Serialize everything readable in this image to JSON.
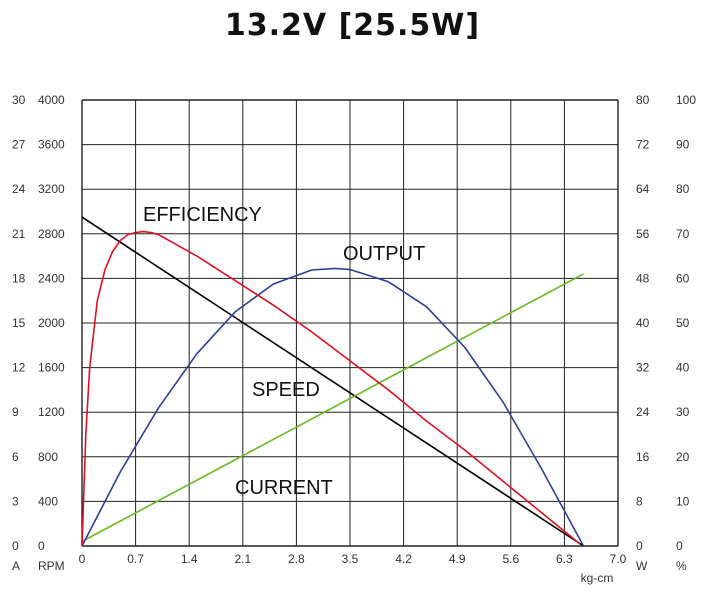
{
  "chart_data": {
    "type": "line",
    "title": "13.2V [25.5W]",
    "x_axis": {
      "ticks": [
        "0",
        "0.7",
        "1.4",
        "2.1",
        "2.8",
        "3.5",
        "4.2",
        "4.9",
        "5.6",
        "6.3",
        "7.0"
      ],
      "range": [
        0,
        7.0
      ],
      "unit_label": "kg-cm"
    },
    "left_axes": [
      {
        "unit_label": "A",
        "range": [
          0,
          30
        ],
        "ticks": [
          "0",
          "3",
          "6",
          "9",
          "12",
          "15",
          "18",
          "21",
          "24",
          "27",
          "30"
        ]
      },
      {
        "unit_label": "RPM",
        "range": [
          0,
          4000
        ],
        "ticks": [
          "0",
          "400",
          "800",
          "1200",
          "1600",
          "2000",
          "2400",
          "2800",
          "3200",
          "3600",
          "4000"
        ]
      }
    ],
    "right_axes": [
      {
        "unit_label": "W",
        "range": [
          0,
          80
        ],
        "ticks": [
          "0",
          "8",
          "16",
          "24",
          "32",
          "40",
          "48",
          "56",
          "64",
          "72",
          "80"
        ]
      },
      {
        "unit_label": "%",
        "range": [
          0,
          100
        ],
        "ticks": [
          "0",
          "10",
          "20",
          "30",
          "40",
          "50",
          "60",
          "70",
          "80",
          "90",
          "100"
        ]
      }
    ],
    "grid": true,
    "series": [
      {
        "name": "SPEED",
        "axis": "RPM",
        "color": "#000000",
        "x": [
          0,
          6.55
        ],
        "y": [
          2950,
          0
        ]
      },
      {
        "name": "CURRENT",
        "axis": "A",
        "color": "#66bb22",
        "x": [
          0,
          6.55
        ],
        "y": [
          0.3,
          18.3
        ]
      },
      {
        "name": "OUTPUT",
        "axis": "W",
        "color": "#2b3f99",
        "x": [
          0,
          0.5,
          1.0,
          1.5,
          2.0,
          2.5,
          3.0,
          3.3,
          3.5,
          4.0,
          4.5,
          5.0,
          5.5,
          6.0,
          6.55
        ],
        "y": [
          0,
          13.3,
          24.8,
          34.5,
          42.0,
          47.0,
          49.5,
          49.8,
          49.6,
          47.4,
          42.9,
          35.6,
          25.8,
          13.9,
          0
        ]
      },
      {
        "name": "EFFICIENCY",
        "axis": "%",
        "color": "#dd1122",
        "x": [
          0,
          0.05,
          0.1,
          0.2,
          0.3,
          0.4,
          0.5,
          0.6,
          0.7,
          0.8,
          0.9,
          1.0,
          1.5,
          2.0,
          2.5,
          3.0,
          3.5,
          4.0,
          4.5,
          5.0,
          5.5,
          6.0,
          6.5
        ],
        "y": [
          0,
          25,
          40,
          55,
          62,
          66,
          68.5,
          69.8,
          70.3,
          70.5,
          70.3,
          69.8,
          65.0,
          59.5,
          54.0,
          48.0,
          41.5,
          35.0,
          28.0,
          21.5,
          14.5,
          7.5,
          0.5
        ]
      }
    ],
    "labels": [
      {
        "text": "EFFICIENCY",
        "series": "EFFICIENCY"
      },
      {
        "text": "OUTPUT",
        "series": "OUTPUT"
      },
      {
        "text": "SPEED",
        "series": "SPEED"
      },
      {
        "text": "CURRENT",
        "series": "CURRENT"
      }
    ]
  }
}
